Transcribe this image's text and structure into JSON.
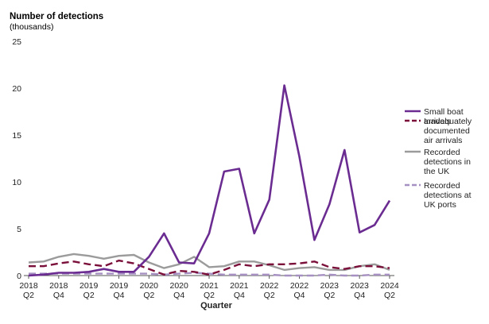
{
  "chart_data": {
    "type": "line",
    "title": "",
    "ylabel": "Number of detections",
    "ylabel_unit": "(thousands)",
    "xlabel": "Quarter",
    "ylim": [
      0,
      25
    ],
    "yticks": [
      "0",
      "5",
      "10",
      "15",
      "20",
      "25"
    ],
    "grid": false,
    "legend_position": "right",
    "x": [
      "2018 Q2",
      "2018 Q3",
      "2018 Q4",
      "2019 Q1",
      "2019 Q2",
      "2019 Q3",
      "2019 Q4",
      "2020 Q1",
      "2020 Q2",
      "2020 Q3",
      "2020 Q4",
      "2021 Q1",
      "2021 Q2",
      "2021 Q3",
      "2021 Q4",
      "2022 Q1",
      "2022 Q2",
      "2022 Q3",
      "2022 Q4",
      "2023 Q1",
      "2023 Q2",
      "2023 Q3",
      "2023 Q4",
      "2024 Q1",
      "2024 Q2"
    ],
    "x_tick_labels": [
      {
        "top": "2018",
        "bottom": "Q2"
      },
      {
        "top": "2018",
        "bottom": "Q4"
      },
      {
        "top": "2019",
        "bottom": "Q2"
      },
      {
        "top": "2019",
        "bottom": "Q4"
      },
      {
        "top": "2020",
        "bottom": "Q2"
      },
      {
        "top": "2020",
        "bottom": "Q4"
      },
      {
        "top": "2021",
        "bottom": "Q2"
      },
      {
        "top": "2021",
        "bottom": "Q4"
      },
      {
        "top": "2022",
        "bottom": "Q2"
      },
      {
        "top": "2022",
        "bottom": "Q4"
      },
      {
        "top": "2023",
        "bottom": "Q2"
      },
      {
        "top": "2023",
        "bottom": "Q4"
      },
      {
        "top": "2024",
        "bottom": "Q2"
      }
    ],
    "series": [
      {
        "name": "Small boat arrivals",
        "legend_lines": [
          "Small boat",
          "arrivals"
        ],
        "color": "#6b2c91",
        "style": "solid",
        "values": [
          0.0,
          0.1,
          0.3,
          0.3,
          0.4,
          0.7,
          0.4,
          0.4,
          2.0,
          4.5,
          1.4,
          1.3,
          4.5,
          11.1,
          11.4,
          4.5,
          8.1,
          20.3,
          12.7,
          3.8,
          7.6,
          13.4,
          4.6,
          5.4,
          8.0
        ]
      },
      {
        "name": "Inadequately documented air arrivals",
        "legend_lines": [
          "Inadequately",
          "documented",
          "air arrivals"
        ],
        "color": "#7a0f3a",
        "style": "dashed",
        "values": [
          1.0,
          1.0,
          1.3,
          1.5,
          1.2,
          1.0,
          1.6,
          1.3,
          0.7,
          0.1,
          0.5,
          0.4,
          0.1,
          0.6,
          1.2,
          1.0,
          1.2,
          1.2,
          1.3,
          1.5,
          0.9,
          0.7,
          1.0,
          1.0,
          0.8
        ]
      },
      {
        "name": "Recorded detections in the UK",
        "legend_lines": [
          "Recorded",
          "detections in",
          "the UK"
        ],
        "color": "#9b9b9b",
        "style": "solid",
        "values": [
          1.4,
          1.5,
          2.0,
          2.3,
          2.1,
          1.8,
          2.1,
          2.2,
          1.4,
          0.8,
          1.2,
          2.0,
          0.9,
          1.0,
          1.5,
          1.5,
          1.1,
          0.6,
          0.8,
          0.9,
          0.6,
          0.6,
          1.0,
          1.2,
          0.6
        ]
      },
      {
        "name": "Recorded detections at UK ports",
        "legend_lines": [
          "Recorded",
          "detections at",
          "UK ports"
        ],
        "color": "#a690c2",
        "style": "dashed",
        "values": [
          0.2,
          0.2,
          0.2,
          0.2,
          0.2,
          0.2,
          0.2,
          0.2,
          0.2,
          0.1,
          0.2,
          0.3,
          0.2,
          0.1,
          0.1,
          0.1,
          0.1,
          0.0,
          0.0,
          0.0,
          0.1,
          0.0,
          0.0,
          0.1,
          0.1
        ]
      }
    ]
  }
}
